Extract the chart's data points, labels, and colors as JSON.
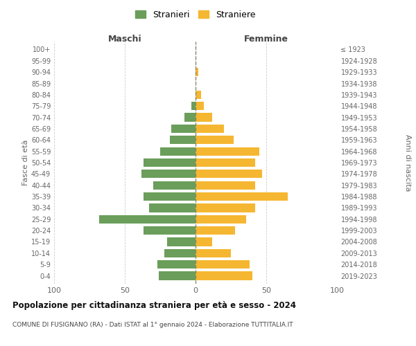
{
  "age_groups": [
    "0-4",
    "5-9",
    "10-14",
    "15-19",
    "20-24",
    "25-29",
    "30-34",
    "35-39",
    "40-44",
    "45-49",
    "50-54",
    "55-59",
    "60-64",
    "65-69",
    "70-74",
    "75-79",
    "80-84",
    "85-89",
    "90-94",
    "95-99",
    "100+"
  ],
  "birth_years": [
    "2019-2023",
    "2014-2018",
    "2009-2013",
    "2004-2008",
    "1999-2003",
    "1994-1998",
    "1989-1993",
    "1984-1988",
    "1979-1983",
    "1974-1978",
    "1969-1973",
    "1964-1968",
    "1959-1963",
    "1954-1958",
    "1949-1953",
    "1944-1948",
    "1939-1943",
    "1934-1938",
    "1929-1933",
    "1924-1928",
    "≤ 1923"
  ],
  "maschi": [
    26,
    27,
    22,
    20,
    37,
    68,
    33,
    37,
    30,
    38,
    37,
    25,
    18,
    17,
    8,
    3,
    0,
    0,
    0,
    0,
    0
  ],
  "femmine": [
    40,
    38,
    25,
    12,
    28,
    36,
    42,
    65,
    42,
    47,
    42,
    45,
    27,
    20,
    12,
    6,
    4,
    0,
    2,
    0,
    0
  ],
  "color_maschi": "#6a9e5a",
  "color_femmine": "#f5b731",
  "title": "Popolazione per cittadinanza straniera per età e sesso - 2024",
  "subtitle": "COMUNE DI FUSIGNANO (RA) - Dati ISTAT al 1° gennaio 2024 - Elaborazione TUTTITALIA.IT",
  "xlabel_left": "Maschi",
  "xlabel_right": "Femmine",
  "ylabel_left": "Fasce di età",
  "ylabel_right": "Anni di nascita",
  "legend_maschi": "Stranieri",
  "legend_femmine": "Straniere",
  "xlim": 100,
  "background_color": "#ffffff",
  "grid_color": "#cccccc"
}
